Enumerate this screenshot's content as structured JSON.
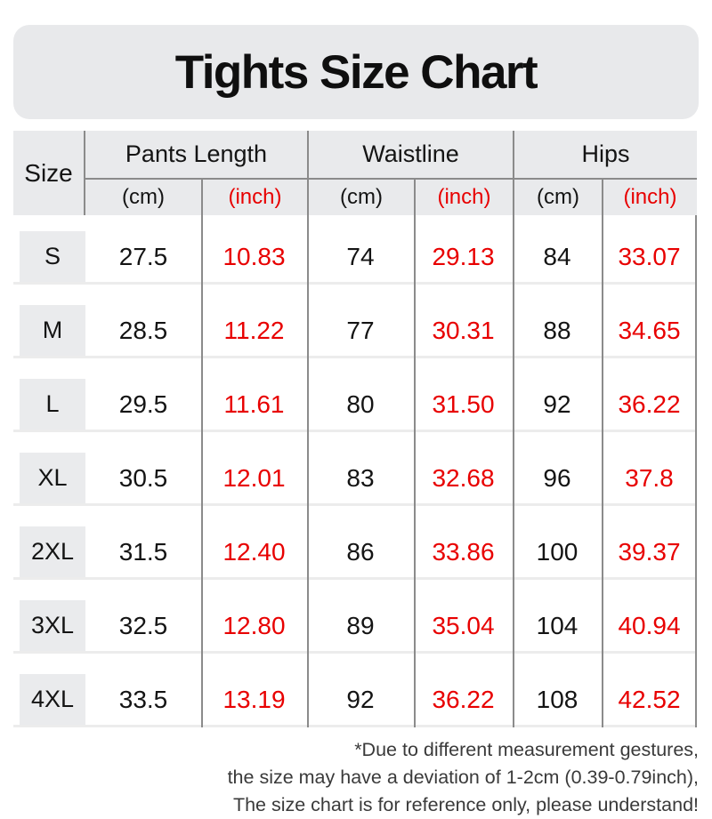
{
  "title": "Tights Size Chart",
  "colors": {
    "accent_red": "#e80000",
    "panel_gray": "#e8e9eb",
    "header_gray": "#e9eaec",
    "size_cell_gray": "#eaebed",
    "divider_gray": "#8b8b8b",
    "row_separator_gray": "#ececec",
    "text_black": "#141414",
    "footer_gray": "#3a3a3a"
  },
  "table": {
    "size_header": "Size",
    "groups": [
      {
        "label": "Pants Length",
        "units": [
          "(cm)",
          "(inch)"
        ]
      },
      {
        "label": "Waistline",
        "units": [
          "(cm)",
          "(inch)"
        ]
      },
      {
        "label": "Hips",
        "units": [
          "(cm)",
          "(inch)"
        ]
      }
    ],
    "rows": [
      {
        "size": "S",
        "values": [
          "27.5",
          "10.83",
          "74",
          "29.13",
          "84",
          "33.07"
        ]
      },
      {
        "size": "M",
        "values": [
          "28.5",
          "11.22",
          "77",
          "30.31",
          "88",
          "34.65"
        ]
      },
      {
        "size": "L",
        "values": [
          "29.5",
          "11.61",
          "80",
          "31.50",
          "92",
          "36.22"
        ]
      },
      {
        "size": "XL",
        "values": [
          "30.5",
          "12.01",
          "83",
          "32.68",
          "96",
          "37.8"
        ]
      },
      {
        "size": "2XL",
        "values": [
          "31.5",
          "12.40",
          "86",
          "33.86",
          "100",
          "39.37"
        ]
      },
      {
        "size": "3XL",
        "values": [
          "32.5",
          "12.80",
          "89",
          "35.04",
          "104",
          "40.94"
        ]
      },
      {
        "size": "4XL",
        "values": [
          "33.5",
          "13.19",
          "92",
          "36.22",
          "108",
          "42.52"
        ]
      }
    ]
  },
  "footer": {
    "lines": [
      "*Due to different measurement gestures,",
      "the size may have a deviation of 1-2cm (0.39-0.79inch),",
      "The size chart is for reference only, please understand!"
    ]
  },
  "chart_data": {
    "type": "table",
    "title": "Tights Size Chart",
    "columns": [
      "Size",
      "Pants Length (cm)",
      "Pants Length (inch)",
      "Waistline (cm)",
      "Waistline (inch)",
      "Hips (cm)",
      "Hips (inch)"
    ],
    "rows": [
      [
        "S",
        27.5,
        10.83,
        74,
        29.13,
        84,
        33.07
      ],
      [
        "M",
        28.5,
        11.22,
        77,
        30.31,
        88,
        34.65
      ],
      [
        "L",
        29.5,
        11.61,
        80,
        31.5,
        92,
        36.22
      ],
      [
        "XL",
        30.5,
        12.01,
        83,
        32.68,
        96,
        37.8
      ],
      [
        "2XL",
        31.5,
        12.4,
        86,
        33.86,
        100,
        39.37
      ],
      [
        "3XL",
        32.5,
        12.8,
        89,
        35.04,
        104,
        40.94
      ],
      [
        "4XL",
        33.5,
        13.19,
        92,
        36.22,
        108,
        42.52
      ]
    ],
    "notes": [
      "*Due to different measurement gestures,",
      "the size may have a deviation of 1-2cm (0.39-0.79inch),",
      "The size chart is for reference only, please understand!"
    ],
    "layout_hints": {
      "unit_columns_color": "red",
      "header_background": "gray",
      "grid": "vertical-dividers-with-light-row-separators"
    }
  }
}
